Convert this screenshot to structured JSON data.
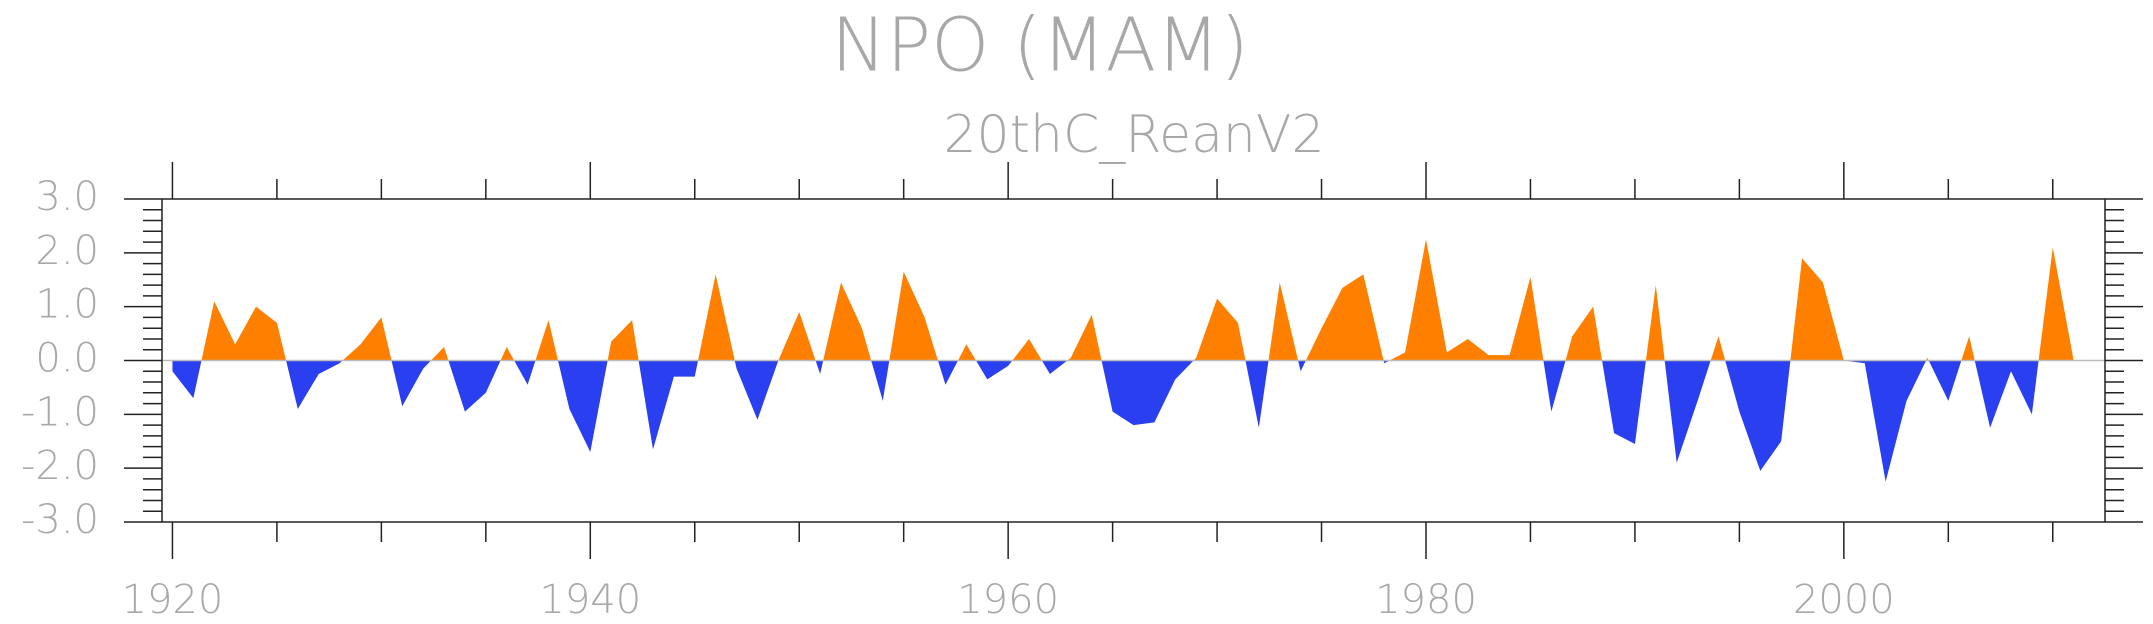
{
  "chart_data": {
    "type": "area",
    "title": "NPO (MAM)",
    "subtitle": "20thC_ReanV2",
    "x": [
      1920,
      1921,
      1922,
      1923,
      1924,
      1925,
      1926,
      1927,
      1928,
      1929,
      1930,
      1931,
      1932,
      1933,
      1934,
      1935,
      1936,
      1937,
      1938,
      1939,
      1940,
      1941,
      1942,
      1943,
      1944,
      1945,
      1946,
      1947,
      1948,
      1949,
      1950,
      1951,
      1952,
      1953,
      1954,
      1955,
      1956,
      1957,
      1958,
      1959,
      1960,
      1961,
      1962,
      1963,
      1964,
      1965,
      1966,
      1967,
      1968,
      1969,
      1970,
      1971,
      1972,
      1973,
      1974,
      1975,
      1976,
      1977,
      1978,
      1979,
      1980,
      1981,
      1982,
      1983,
      1984,
      1985,
      1986,
      1987,
      1988,
      1989,
      1990,
      1991,
      1992,
      1993,
      1994,
      1995,
      1996,
      1997,
      1998,
      1999,
      2000,
      2001,
      2002,
      2003,
      2004,
      2005,
      2006,
      2007,
      2008,
      2009,
      2010,
      2011
    ],
    "values": [
      -0.2,
      -0.7,
      1.1,
      0.3,
      1.0,
      0.7,
      -0.9,
      -0.25,
      -0.05,
      0.3,
      0.8,
      -0.85,
      -0.15,
      0.25,
      -0.95,
      -0.6,
      0.25,
      -0.45,
      0.75,
      -0.9,
      -1.7,
      0.35,
      0.75,
      -1.65,
      -0.3,
      -0.3,
      1.6,
      -0.15,
      -1.1,
      0.0,
      0.9,
      -0.25,
      1.45,
      0.6,
      -0.75,
      1.65,
      0.8,
      -0.45,
      0.3,
      -0.35,
      -0.1,
      0.4,
      -0.25,
      0.05,
      0.85,
      -0.95,
      -1.2,
      -1.15,
      -0.35,
      0.05,
      1.15,
      0.7,
      -1.25,
      1.45,
      -0.2,
      0.6,
      1.35,
      1.6,
      -0.05,
      0.15,
      2.25,
      0.15,
      0.4,
      0.1,
      0.1,
      1.55,
      -0.95,
      0.45,
      1.0,
      -1.35,
      -1.55,
      1.4,
      -1.9,
      -0.75,
      0.45,
      -0.95,
      -2.05,
      -1.5,
      1.9,
      1.45,
      0.0,
      -0.05,
      -2.25,
      -0.75,
      0.05,
      -0.75,
      0.45,
      -1.25,
      -0.2,
      -1.0,
      2.1,
      0.0
    ],
    "positive_color": "#ff8000",
    "negative_color": "#2a3ff0",
    "xlim": [
      1919.5,
      2012.5
    ],
    "xticks": [
      1920,
      1940,
      1960,
      1980,
      2000
    ],
    "ylim": [
      -3,
      3
    ],
    "yticks": [
      {
        "value": -3,
        "label": "-3.0"
      },
      {
        "value": -2,
        "label": "-2.0"
      },
      {
        "value": -1,
        "label": "-1.0"
      },
      {
        "value": 0,
        "label": "0.0"
      },
      {
        "value": 1,
        "label": "1.0"
      },
      {
        "value": 2,
        "label": "2.0"
      },
      {
        "value": 3,
        "label": "3.0"
      }
    ]
  }
}
